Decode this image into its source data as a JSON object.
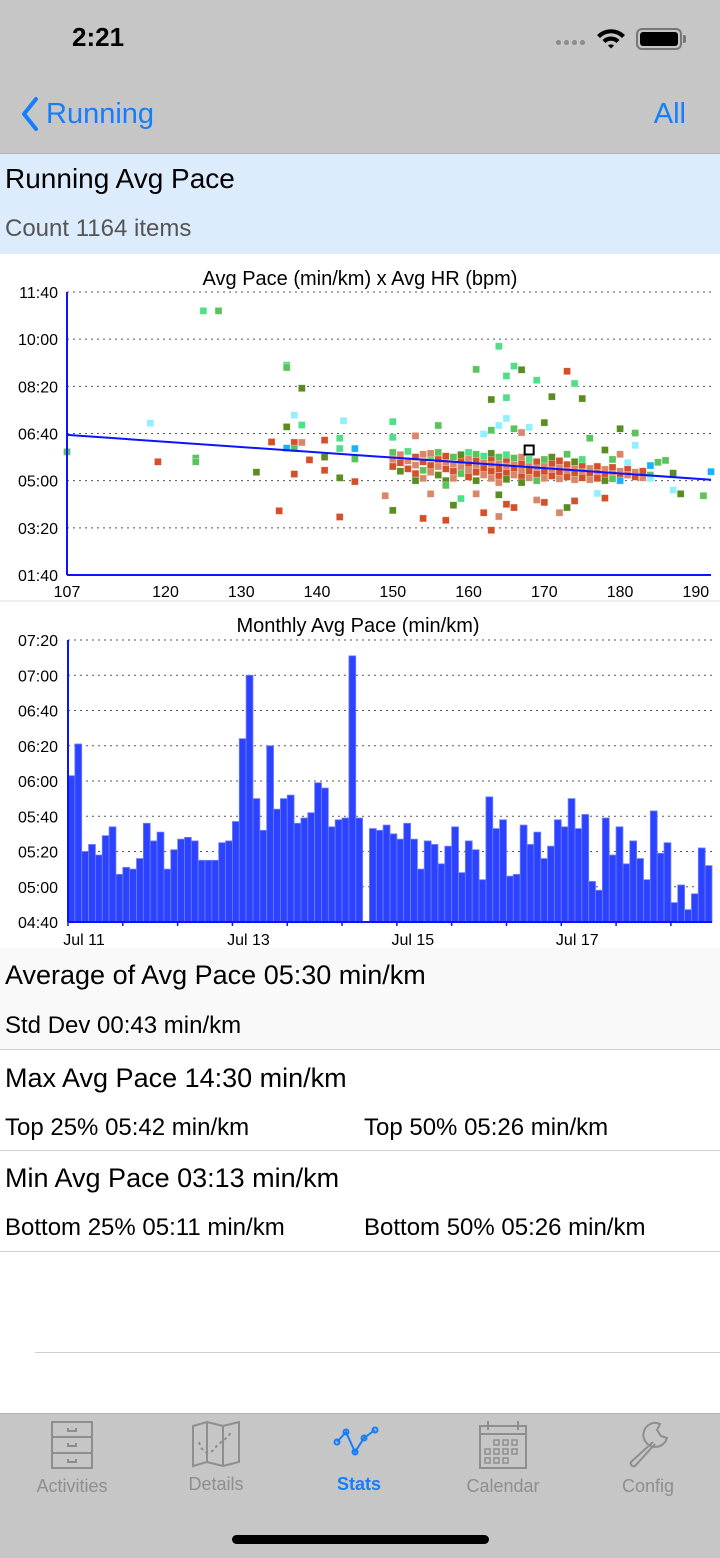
{
  "status_bar": {
    "time": "2:21"
  },
  "nav": {
    "back_label": "Running",
    "right_label": "All",
    "accent": "#157efb"
  },
  "header": {
    "title": "Running Avg Pace",
    "count": "Count 1164 items"
  },
  "stats": {
    "average": "Average of Avg Pace 05:30 min/km",
    "std_dev": "Std Dev 00:43 min/km",
    "max": "Max Avg Pace 14:30 min/km",
    "top25": "Top 25% 05:42 min/km",
    "top50": "Top 50% 05:26 min/km",
    "min": "Min Avg Pace 03:13 min/km",
    "bottom25": "Bottom 25% 05:11 min/km",
    "bottom50": "Bottom 50% 05:26 min/km"
  },
  "tabs": [
    {
      "label": "Activities",
      "icon": "filing-cabinet-icon"
    },
    {
      "label": "Details",
      "icon": "map-icon"
    },
    {
      "label": "Stats",
      "icon": "line-chart-icon",
      "active": true
    },
    {
      "label": "Calendar",
      "icon": "calendar-icon"
    },
    {
      "label": "Config",
      "icon": "wrench-icon"
    }
  ],
  "chart_data": [
    {
      "type": "scatter",
      "title": "Avg Pace (min/km) x Avg HR (bpm)",
      "xlim": [
        107,
        192
      ],
      "ylim": [
        "01:40",
        "11:40"
      ],
      "x_ticks": [
        "107",
        "120",
        "130",
        "140",
        "150",
        "160",
        "170",
        "180",
        "190"
      ],
      "y_ticks": [
        "01:40",
        "03:20",
        "05:00",
        "06:40",
        "08:20",
        "10:00",
        "11:40"
      ],
      "grid": "horizontal dotted",
      "palette": [
        "#4fdf86",
        "#5bc35b",
        "#5a8c22",
        "#d4502a",
        "#d8876a",
        "#92efff",
        "#18b0ff"
      ],
      "trend_line": {
        "from": [
          107,
          "06:37"
        ],
        "to": [
          192,
          "05:02"
        ],
        "color": "#0a14ff"
      },
      "highlight": [
        168,
        "06:05"
      ],
      "points": [
        [
          125,
          "11:00",
          0
        ],
        [
          127,
          "11:00",
          1
        ],
        [
          136,
          "09:05",
          0
        ],
        [
          136,
          "09:00",
          1
        ],
        [
          138,
          "08:16",
          2
        ],
        [
          118,
          "07:02",
          5
        ],
        [
          137,
          "07:19",
          5
        ],
        [
          143.5,
          "07:07",
          5
        ],
        [
          136,
          "06:54",
          2
        ],
        [
          138,
          "06:58",
          0
        ],
        [
          107,
          "06:01",
          1
        ],
        [
          119,
          "05:40",
          3
        ],
        [
          124,
          "05:48",
          1
        ],
        [
          124,
          "05:40",
          1
        ],
        [
          132,
          "05:18",
          2
        ],
        [
          134,
          "06:22",
          3
        ],
        [
          137,
          "06:21",
          3
        ],
        [
          138,
          "06:21",
          4
        ],
        [
          136,
          "06:09",
          6
        ],
        [
          137,
          "06:08",
          1
        ],
        [
          139,
          "05:44",
          3
        ],
        [
          141,
          "06:26",
          3
        ],
        [
          141,
          "05:50",
          2
        ],
        [
          141,
          "05:22",
          3
        ],
        [
          137,
          "05:14",
          3
        ],
        [
          143,
          "06:30",
          0
        ],
        [
          143,
          "06:08",
          0
        ],
        [
          143,
          "05:06",
          2
        ],
        [
          135,
          "03:56",
          3
        ],
        [
          143,
          "03:43",
          3
        ],
        [
          145,
          "06:08",
          6
        ],
        [
          145,
          "05:46",
          1
        ],
        [
          145,
          "04:58",
          3
        ],
        [
          164,
          "09:45",
          0
        ],
        [
          161,
          "08:56",
          1
        ],
        [
          166,
          "09:03",
          0
        ],
        [
          167,
          "08:55",
          2
        ],
        [
          165,
          "08:42",
          0
        ],
        [
          169,
          "08:33",
          0
        ],
        [
          173,
          "08:52",
          3
        ],
        [
          174,
          "08:26",
          0
        ],
        [
          163,
          "07:52",
          2
        ],
        [
          165,
          "07:56",
          0
        ],
        [
          171,
          "07:58",
          2
        ],
        [
          175,
          "07:54",
          2
        ],
        [
          150,
          "07:05",
          0
        ],
        [
          156,
          "06:57",
          1
        ],
        [
          170,
          "07:03",
          2
        ],
        [
          165,
          "07:12",
          5
        ],
        [
          164,
          "06:57",
          5
        ],
        [
          163,
          "06:47",
          1
        ],
        [
          162,
          "06:39",
          5
        ],
        [
          166,
          "06:50",
          1
        ],
        [
          167,
          "06:42",
          4
        ],
        [
          168,
          "06:53",
          5
        ],
        [
          180,
          "06:50",
          2
        ],
        [
          182,
          "06:41",
          1
        ],
        [
          182,
          "06:15",
          5
        ],
        [
          150,
          "06:32",
          0
        ],
        [
          153,
          "06:35",
          4
        ],
        [
          176,
          "06:30",
          1
        ],
        [
          150,
          "03:57",
          2
        ],
        [
          154,
          "03:40",
          3
        ],
        [
          157,
          "03:36",
          3
        ],
        [
          163,
          "03:15",
          3
        ],
        [
          162,
          "03:52",
          3
        ],
        [
          164,
          "03:44",
          4
        ],
        [
          165,
          "04:10",
          3
        ],
        [
          166,
          "04:03",
          3
        ],
        [
          172,
          "03:52",
          4
        ],
        [
          173,
          "04:03",
          2
        ],
        [
          174,
          "04:17",
          3
        ],
        [
          170,
          "04:14",
          3
        ],
        [
          169,
          "04:19",
          4
        ],
        [
          149,
          "04:28",
          4
        ],
        [
          155,
          "04:32",
          4
        ],
        [
          158,
          "04:08",
          2
        ],
        [
          159,
          "04:22",
          0
        ],
        [
          161,
          "04:32",
          4
        ],
        [
          164,
          "04:30",
          2
        ],
        [
          187,
          "04:40",
          5
        ],
        [
          188,
          "04:32",
          2
        ],
        [
          191,
          "04:28",
          1
        ],
        [
          192,
          "05:19",
          6
        ],
        [
          187,
          "05:16",
          2
        ],
        [
          186,
          "05:43",
          1
        ],
        [
          185,
          "05:39",
          1
        ],
        [
          184,
          "05:32",
          6
        ],
        [
          178,
          "04:23",
          3
        ],
        [
          177,
          "04:33",
          5
        ],
        [
          180,
          "05:56",
          4
        ],
        [
          181,
          "05:38",
          5
        ],
        [
          179,
          "05:45",
          1
        ],
        [
          178,
          "06:05",
          2
        ],
        [
          150,
          "05:45",
          4
        ],
        [
          150,
          "05:30",
          3
        ],
        [
          150,
          "06:00",
          1
        ],
        [
          151,
          "05:55",
          4
        ],
        [
          151,
          "05:38",
          3
        ],
        [
          151,
          "05:20",
          2
        ],
        [
          152,
          "05:42",
          4
        ],
        [
          152,
          "05:25",
          3
        ],
        [
          152,
          "06:02",
          0
        ],
        [
          153,
          "05:50",
          3
        ],
        [
          153,
          "05:33",
          4
        ],
        [
          153,
          "05:15",
          3
        ],
        [
          153,
          "05:00",
          2
        ],
        [
          154,
          "05:56",
          4
        ],
        [
          154,
          "05:40",
          3
        ],
        [
          154,
          "05:22",
          1
        ],
        [
          154,
          "05:05",
          4
        ],
        [
          155,
          "05:48",
          0
        ],
        [
          155,
          "05:32",
          3
        ],
        [
          155,
          "05:18",
          4
        ],
        [
          155,
          "05:58",
          4
        ],
        [
          156,
          "05:45",
          3
        ],
        [
          156,
          "05:30",
          4
        ],
        [
          156,
          "05:12",
          2
        ],
        [
          156,
          "06:00",
          1
        ],
        [
          157,
          "05:40",
          4
        ],
        [
          157,
          "05:25",
          3
        ],
        [
          157,
          "05:00",
          2
        ],
        [
          157,
          "04:50",
          1
        ],
        [
          157,
          "05:52",
          3
        ],
        [
          158,
          "05:50",
          1
        ],
        [
          158,
          "05:35",
          4
        ],
        [
          158,
          "05:20",
          3
        ],
        [
          158,
          "05:05",
          4
        ],
        [
          159,
          "05:42",
          3
        ],
        [
          159,
          "05:28",
          4
        ],
        [
          159,
          "05:15",
          1
        ],
        [
          159,
          "05:55",
          2
        ],
        [
          160,
          "05:48",
          4
        ],
        [
          160,
          "05:34",
          3
        ],
        [
          160,
          "05:22",
          4
        ],
        [
          160,
          "05:08",
          3
        ],
        [
          160,
          "06:00",
          0
        ],
        [
          161,
          "05:45",
          3
        ],
        [
          161,
          "05:30",
          4
        ],
        [
          161,
          "05:18",
          3
        ],
        [
          161,
          "05:00",
          2
        ],
        [
          161,
          "05:56",
          1
        ],
        [
          162,
          "05:40",
          4
        ],
        [
          162,
          "05:26",
          3
        ],
        [
          162,
          "05:12",
          4
        ],
        [
          162,
          "05:52",
          0
        ],
        [
          163,
          "05:46",
          3
        ],
        [
          163,
          "05:33",
          4
        ],
        [
          163,
          "05:20",
          3
        ],
        [
          163,
          "05:05",
          4
        ],
        [
          163,
          "05:58",
          2
        ],
        [
          164,
          "05:38",
          4
        ],
        [
          164,
          "05:25",
          3
        ],
        [
          164,
          "05:10",
          3
        ],
        [
          164,
          "05:50",
          1
        ],
        [
          164,
          "04:56",
          4
        ],
        [
          165,
          "05:42",
          3
        ],
        [
          165,
          "05:30",
          4
        ],
        [
          165,
          "05:16",
          3
        ],
        [
          165,
          "05:55",
          0
        ],
        [
          165,
          "05:03",
          2
        ],
        [
          166,
          "05:38",
          4
        ],
        [
          166,
          "05:24",
          3
        ],
        [
          166,
          "05:12",
          4
        ],
        [
          166,
          "05:48",
          1
        ],
        [
          167,
          "05:36",
          3
        ],
        [
          167,
          "05:22",
          4
        ],
        [
          167,
          "05:08",
          3
        ],
        [
          167,
          "05:50",
          4
        ],
        [
          167,
          "04:56",
          2
        ],
        [
          168,
          "05:34",
          4
        ],
        [
          168,
          "05:20",
          3
        ],
        [
          168,
          "05:06",
          4
        ],
        [
          168,
          "05:45",
          0
        ],
        [
          169,
          "05:40",
          3
        ],
        [
          169,
          "05:26",
          4
        ],
        [
          169,
          "05:14",
          3
        ],
        [
          169,
          "05:00",
          1
        ],
        [
          170,
          "05:32",
          4
        ],
        [
          170,
          "05:18",
          3
        ],
        [
          170,
          "05:05",
          4
        ],
        [
          170,
          "05:45",
          1
        ],
        [
          171,
          "05:36",
          3
        ],
        [
          171,
          "05:22",
          4
        ],
        [
          171,
          "05:10",
          3
        ],
        [
          171,
          "05:50",
          2
        ],
        [
          172,
          "05:30",
          4
        ],
        [
          172,
          "05:18",
          3
        ],
        [
          172,
          "05:04",
          4
        ],
        [
          172,
          "05:42",
          3
        ],
        [
          173,
          "05:34",
          3
        ],
        [
          173,
          "05:20",
          4
        ],
        [
          173,
          "05:08",
          3
        ],
        [
          173,
          "05:56",
          1
        ],
        [
          174,
          "05:28",
          4
        ],
        [
          174,
          "05:16",
          3
        ],
        [
          174,
          "05:02",
          4
        ],
        [
          174,
          "05:40",
          2
        ],
        [
          175,
          "05:32",
          3
        ],
        [
          175,
          "05:18",
          4
        ],
        [
          175,
          "05:06",
          3
        ],
        [
          175,
          "05:45",
          0
        ],
        [
          176,
          "05:26",
          4
        ],
        [
          176,
          "05:14",
          3
        ],
        [
          176,
          "05:02",
          4
        ],
        [
          177,
          "05:30",
          3
        ],
        [
          177,
          "05:16",
          4
        ],
        [
          177,
          "05:05",
          3
        ],
        [
          178,
          "05:24",
          4
        ],
        [
          178,
          "05:12",
          3
        ],
        [
          178,
          "05:00",
          2
        ],
        [
          179,
          "05:28",
          3
        ],
        [
          179,
          "05:14",
          4
        ],
        [
          179,
          "05:04",
          1
        ],
        [
          180,
          "05:20",
          4
        ],
        [
          180,
          "05:10",
          3
        ],
        [
          180,
          "05:00",
          6
        ],
        [
          181,
          "05:24",
          3
        ],
        [
          181,
          "05:12",
          4
        ],
        [
          182,
          "05:18",
          4
        ],
        [
          182,
          "05:08",
          3
        ],
        [
          183,
          "05:20",
          3
        ],
        [
          183,
          "05:06",
          4
        ],
        [
          184,
          "05:12",
          1
        ],
        [
          184,
          "05:05",
          5
        ]
      ]
    },
    {
      "type": "bar",
      "title": "Monthly Avg Pace (min/km)",
      "ylim": [
        "04:40",
        "07:20"
      ],
      "y_ticks": [
        "04:40",
        "05:00",
        "05:20",
        "05:40",
        "06:00",
        "06:20",
        "06:40",
        "07:00",
        "07:20"
      ],
      "x_labels": [
        {
          "index": 0,
          "label": "Jul 11"
        },
        {
          "index": 24,
          "label": "Jul 13"
        },
        {
          "index": 48,
          "label": "Jul 15"
        },
        {
          "index": 72,
          "label": "Jul 17"
        }
      ],
      "grid": "horizontal dotted",
      "bar_color": "#2b43ff",
      "values": [
        "06:03",
        "06:21",
        "05:20",
        "05:24",
        "05:18",
        "05:29",
        "05:34",
        "05:07",
        "05:11",
        "05:10",
        "05:16",
        "05:36",
        "05:26",
        "05:31",
        "05:10",
        "05:21",
        "05:27",
        "05:28",
        "05:26",
        "05:15",
        "05:15",
        "05:15",
        "05:25",
        "05:26",
        "05:37",
        "06:24",
        "07:00",
        "05:50",
        "05:32",
        "06:20",
        "05:44",
        "05:50",
        "05:52",
        "05:36",
        "05:39",
        "05:42",
        "05:59",
        "05:56",
        "05:34",
        "05:38",
        "05:39",
        "07:11",
        "05:39",
        null,
        "05:33",
        "05:32",
        "05:35",
        "05:30",
        "05:27",
        "05:36",
        "05:27",
        "05:10",
        "05:26",
        "05:24",
        "05:13",
        "05:23",
        "05:34",
        "05:08",
        "05:26",
        "05:21",
        "05:04",
        "05:51",
        "05:33",
        "05:38",
        "05:06",
        "05:07",
        "05:35",
        "05:24",
        "05:31",
        "05:16",
        "05:23",
        "05:38",
        "05:34",
        "05:50",
        "05:33",
        "05:41",
        "05:03",
        "04:58",
        "05:39",
        "05:18",
        "05:34",
        "05:13",
        "05:26",
        "05:16",
        "05:04",
        "05:43",
        "05:19",
        "05:25",
        "04:51",
        "05:01",
        "04:47",
        "04:56",
        "05:22",
        "05:12"
      ]
    }
  ]
}
